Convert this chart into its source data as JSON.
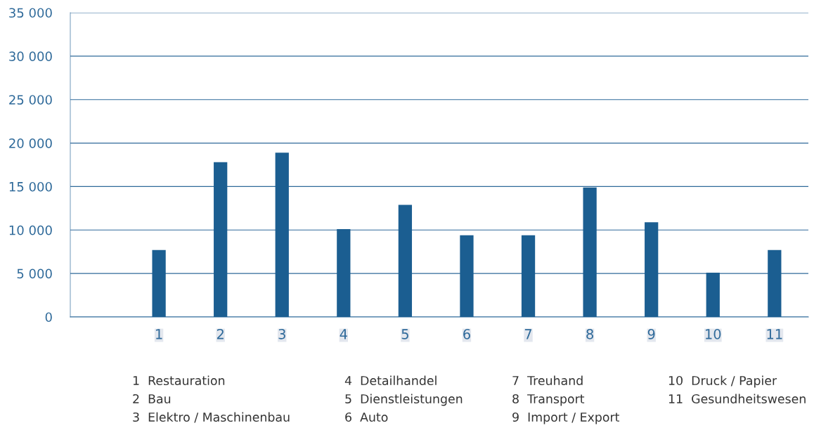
{
  "chart_data": {
    "type": "bar",
    "categories": [
      "1",
      "2",
      "3",
      "4",
      "5",
      "6",
      "7",
      "8",
      "9",
      "10",
      "11"
    ],
    "values": [
      7700,
      17800,
      18900,
      10100,
      12900,
      9400,
      9400,
      14900,
      10900,
      5100,
      7700
    ],
    "color": "#1b5e91",
    "ylim": [
      0,
      35000
    ],
    "yticks": [
      {
        "value": 0,
        "label": "0"
      },
      {
        "value": 5000,
        "label": "5 000"
      },
      {
        "value": 10000,
        "label": "10 000"
      },
      {
        "value": 15000,
        "label": "15 000"
      },
      {
        "value": 20000,
        "label": "20 000"
      },
      {
        "value": 25000,
        "label": "25 000"
      },
      {
        "value": 30000,
        "label": "30 000"
      },
      {
        "value": 35000,
        "label": "35 000"
      }
    ],
    "grid": "y",
    "annotations": [
      "1  Restauration",
      "2  Bau",
      "3  Elektro / Maschinenbau",
      "4  Detailhandel",
      "5  Dienstleistungen",
      "6  Auto",
      "7  Treuhand",
      "8  Transport",
      "9  Import / Export",
      "10  Druck / Papier",
      "11  Gesundheitswesen"
    ]
  }
}
